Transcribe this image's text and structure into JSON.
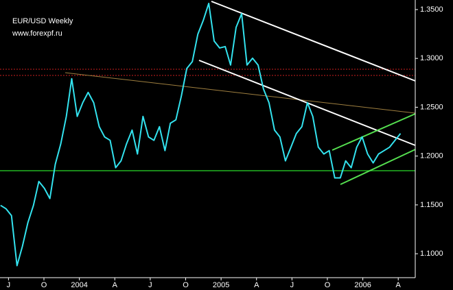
{
  "chart_data": {
    "type": "line",
    "title": "EUR/USD Weekly",
    "subtitle": "www.forexpf.ru",
    "x": [
      2003.444,
      2003.483,
      2003.521,
      2003.56,
      2003.598,
      2003.637,
      2003.676,
      2003.714,
      2003.753,
      2003.792,
      2003.83,
      2003.869,
      2003.908,
      2003.946,
      2003.985,
      2004.024,
      2004.062,
      2004.101,
      2004.14,
      2004.178,
      2004.217,
      2004.256,
      2004.294,
      2004.333,
      2004.372,
      2004.41,
      2004.449,
      2004.488,
      2004.526,
      2004.565,
      2004.604,
      2004.642,
      2004.681,
      2004.72,
      2004.758,
      2004.797,
      2004.836,
      2004.874,
      2004.913,
      2004.951,
      2004.99,
      2005.029,
      2005.067,
      2005.106,
      2005.145,
      2005.183,
      2005.222,
      2005.261,
      2005.299,
      2005.338,
      2005.377,
      2005.415,
      2005.454,
      2005.493,
      2005.531,
      2005.57,
      2005.609,
      2005.647,
      2005.686,
      2005.725,
      2005.763,
      2005.802,
      2005.841,
      2005.879,
      2005.918,
      2005.957,
      2005.995,
      2006.034,
      2006.073,
      2006.111,
      2006.15,
      2006.189,
      2006.227,
      2006.266
    ],
    "values": [
      1.1495,
      1.146,
      1.139,
      1.0878,
      1.1075,
      1.132,
      1.1495,
      1.174,
      1.167,
      1.1565,
      1.1916,
      1.2126,
      1.2406,
      1.2792,
      1.2406,
      1.2547,
      1.2652,
      1.2547,
      1.2301,
      1.2196,
      1.2161,
      1.1881,
      1.1951,
      1.2126,
      1.2266,
      1.2021,
      1.2406,
      1.2196,
      1.2161,
      1.2301,
      1.2056,
      1.2336,
      1.2371,
      1.2617,
      1.2897,
      1.2967,
      1.3248,
      1.3388,
      1.3563,
      1.3178,
      1.3107,
      1.3121,
      1.2932,
      1.3318,
      1.3458,
      1.2932,
      1.3002,
      1.2932,
      1.2687,
      1.2547,
      1.2266,
      1.2196,
      1.1951,
      1.2091,
      1.2231,
      1.2301,
      1.2547,
      1.2406,
      1.2091,
      1.2021,
      1.2056,
      1.1776,
      1.1776,
      1.1951,
      1.1881,
      1.2091,
      1.2196,
      1.2021,
      1.193,
      1.2021,
      1.2056,
      1.2091,
      1.2161,
      1.2231
    ],
    "color": "#33e3ef",
    "xlim": [
      2003.44,
      2006.37
    ],
    "xticks": [
      {
        "value": 2003.5,
        "label": "J"
      },
      {
        "value": 2003.75,
        "label": "O"
      },
      2004,
      {
        "value": 2004.25,
        "label": "A"
      },
      {
        "value": 2004.5,
        "label": "J"
      },
      {
        "value": 2004.75,
        "label": "O"
      },
      2005,
      {
        "value": 2005.25,
        "label": "A"
      },
      {
        "value": 2005.5,
        "label": "J"
      },
      {
        "value": 2005.75,
        "label": "O"
      },
      2006,
      {
        "value": 2006.25,
        "label": "A"
      }
    ],
    "ylim": [
      1.0755,
      1.3598
    ],
    "yticks": [
      {
        "value": 1.1,
        "label": "1.1000"
      },
      {
        "value": 1.15,
        "label": "1.1500"
      },
      {
        "value": 1.2,
        "label": "1.2000"
      },
      {
        "value": 1.25,
        "label": "1.2500"
      },
      {
        "value": 1.3,
        "label": "1.3000"
      },
      {
        "value": 1.35,
        "label": "1.3500"
      }
    ],
    "grid": false
  }
}
